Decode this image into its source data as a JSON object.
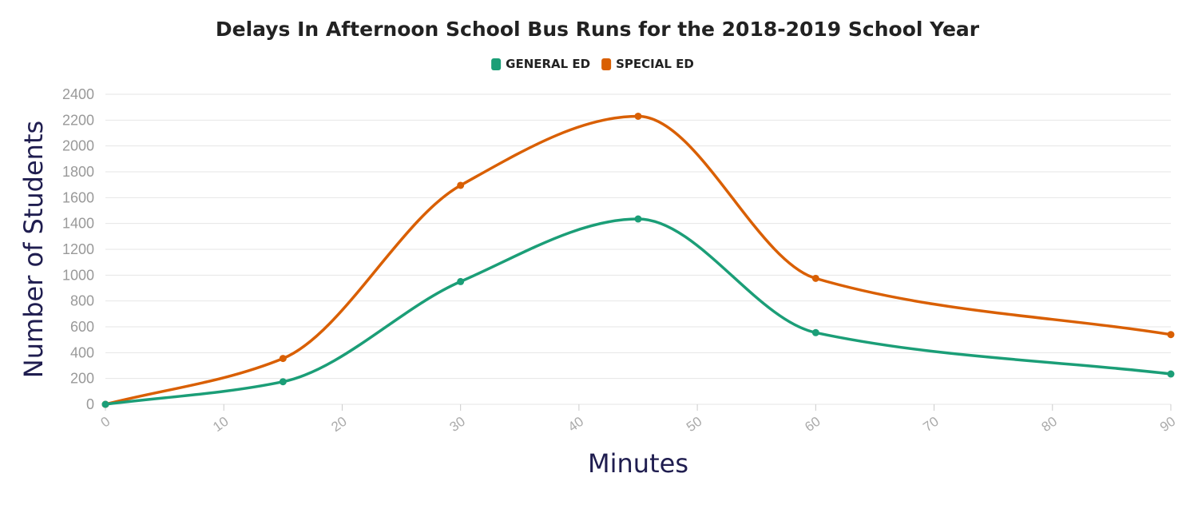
{
  "chart_data": {
    "type": "line",
    "title": "Delays In Afternoon School Bus Runs for the 2018-2019 School Year",
    "xlabel": "Minutes",
    "ylabel": "Number of Students",
    "x": [
      0,
      15,
      30,
      45,
      60,
      90
    ],
    "xticks": [
      0,
      10,
      20,
      30,
      40,
      50,
      60,
      70,
      80,
      90
    ],
    "yticks": [
      0,
      200,
      400,
      600,
      800,
      1000,
      1200,
      1400,
      1600,
      1800,
      2000,
      2200,
      2400
    ],
    "xlim": [
      0,
      90
    ],
    "ylim": [
      0,
      2400
    ],
    "grid": true,
    "legend_position": "top-center",
    "series": [
      {
        "name": "GENERAL ED",
        "color": "#1b9e77",
        "values": [
          0,
          175,
          950,
          1435,
          555,
          235
        ]
      },
      {
        "name": "SPECIAL ED",
        "color": "#d95f02",
        "values": [
          0,
          355,
          1695,
          2230,
          975,
          540
        ]
      }
    ]
  }
}
